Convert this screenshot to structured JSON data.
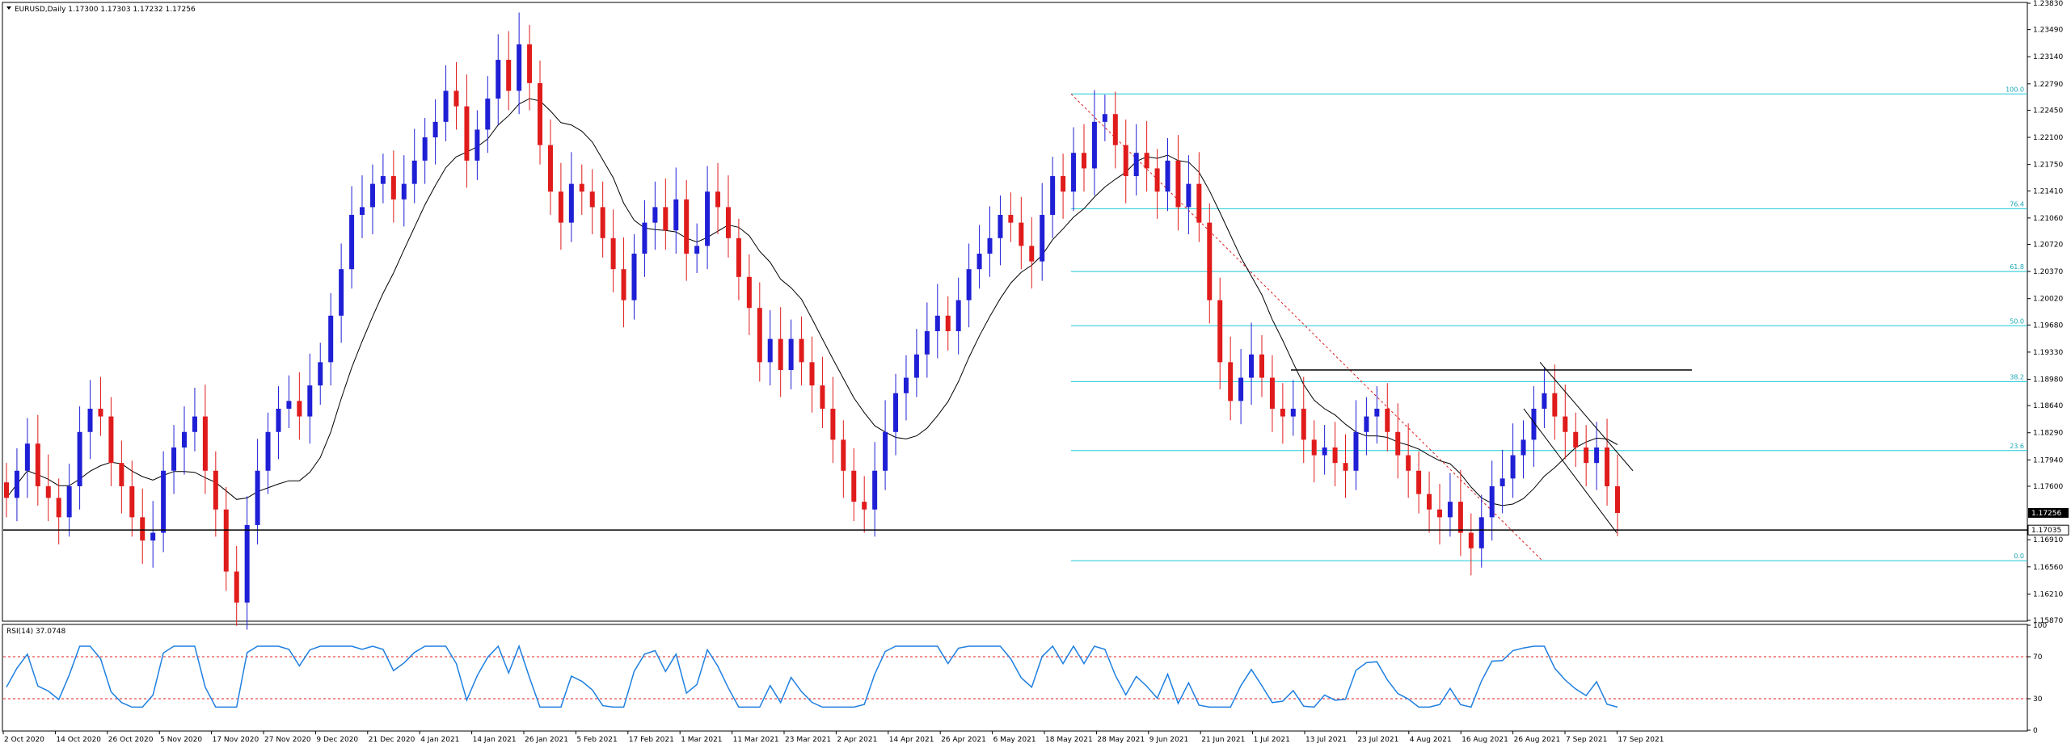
{
  "window": {
    "symbol_header": "EURUSD,Daily  1.17300 1.17303 1.17232 1.17256",
    "menu_icon": "triangle-down-icon"
  },
  "chart_data": [
    {
      "type": "candlestick",
      "title": "EURUSD,Daily  1.17300 1.17303 1.17232 1.17256",
      "ylim": [
        1.1587,
        1.2383
      ],
      "y_ticks": [
        "1.23830",
        "1.23490",
        "1.23140",
        "1.22790",
        "1.22450",
        "1.22100",
        "1.21750",
        "1.21410",
        "1.21060",
        "1.20720",
        "1.20370",
        "1.20020",
        "1.19680",
        "1.19330",
        "1.18980",
        "1.18640",
        "1.18290",
        "1.17940",
        "1.17600",
        "1.16910",
        "1.16560",
        "1.16210",
        "1.15870"
      ],
      "x_ticks": [
        "2 Oct 2020",
        "14 Oct 2020",
        "26 Oct 2020",
        "5 Nov 2020",
        "17 Nov 2020",
        "27 Nov 2020",
        "9 Dec 2020",
        "21 Dec 2020",
        "4 Jan 2021",
        "14 Jan 2021",
        "26 Jan 2021",
        "5 Feb 2021",
        "17 Feb 2021",
        "1 Mar 2021",
        "11 Mar 2021",
        "23 Mar 2021",
        "2 Apr 2021",
        "14 Apr 2021",
        "26 Apr 2021",
        "6 May 2021",
        "18 May 2021",
        "28 May 2021",
        "9 Jun 2021",
        "21 Jun 2021",
        "1 Jul 2021",
        "13 Jul 2021",
        "23 Jul 2021",
        "4 Aug 2021",
        "16 Aug 2021",
        "26 Aug 2021",
        "7 Sep 2021",
        "17 Sep 2021"
      ],
      "current_price": "1.17256",
      "support_price": "1.17035",
      "anchor_closes": [
        1.1745,
        1.178,
        1.1815,
        1.176,
        1.1745,
        1.172,
        1.176,
        1.183,
        1.186,
        1.185,
        1.179,
        1.176,
        1.172,
        1.169,
        1.17,
        1.178,
        1.181,
        1.183,
        1.185,
        1.178,
        1.173,
        1.165,
        1.161,
        1.171,
        1.178,
        1.183,
        1.186,
        1.187,
        1.185,
        1.189,
        1.192,
        1.198,
        1.204,
        1.211,
        1.212,
        1.215,
        1.216,
        1.213,
        1.215,
        1.218,
        1.221,
        1.223,
        1.227,
        1.225,
        1.218,
        1.222,
        1.226,
        1.231,
        1.227,
        1.233,
        1.228,
        1.22,
        1.214,
        1.21,
        1.215,
        1.214,
        1.212,
        1.208,
        1.204,
        1.2,
        1.206,
        1.21,
        1.212,
        1.209,
        1.213,
        1.206,
        1.207,
        1.214,
        1.212,
        1.208,
        1.203,
        1.199,
        1.192,
        1.195,
        1.191,
        1.195,
        1.192,
        1.189,
        1.186,
        1.182,
        1.178,
        1.174,
        1.173,
        1.178,
        1.183,
        1.188,
        1.19,
        1.193,
        1.196,
        1.198,
        1.196,
        1.2,
        1.204,
        1.206,
        1.208,
        1.211,
        1.21,
        1.207,
        1.205,
        1.211,
        1.216,
        1.214,
        1.219,
        1.217,
        1.223,
        1.224,
        1.22,
        1.216,
        1.219,
        1.217,
        1.214,
        1.218,
        1.212,
        1.215,
        1.21,
        1.2,
        1.192,
        1.187,
        1.19,
        1.193,
        1.19,
        1.186,
        1.185,
        1.186,
        1.182,
        1.18,
        1.181,
        1.179,
        1.178,
        1.183,
        1.185,
        1.186,
        1.183,
        1.18,
        1.178,
        1.175,
        1.173,
        1.172,
        1.174,
        1.17,
        1.168,
        1.172,
        1.176,
        1.177,
        1.18,
        1.182,
        1.186,
        1.188,
        1.185,
        1.183,
        1.181,
        1.179,
        1.181,
        1.176,
        1.17256
      ],
      "sma_period_note": "",
      "annotations": {
        "horizontal_resistance": 1.191,
        "fib_levels": [
          {
            "label": "100.0",
            "price": 1.2266
          },
          {
            "label": "76.4",
            "price": 1.2118
          },
          {
            "label": "61.8",
            "price": 1.2037
          },
          {
            "label": "50.0",
            "price": 1.1967
          },
          {
            "label": "38.2",
            "price": 1.1895
          },
          {
            "label": "23.6",
            "price": 1.1806
          },
          {
            "label": "0.0",
            "price": 1.1664
          }
        ]
      },
      "colors": {
        "up": "#1f1fd6",
        "down": "#e01b1b",
        "fib": "#1ec9d6",
        "ma": "#000000"
      }
    },
    {
      "type": "line",
      "title": "RSI(14) 37.0748",
      "ylim": [
        0,
        100
      ],
      "y_ticks": [
        "100",
        "70",
        "30",
        "0"
      ],
      "levels": [
        70,
        30
      ],
      "colors": {
        "line": "#1e7fe0",
        "levels": "#e02020"
      }
    }
  ]
}
